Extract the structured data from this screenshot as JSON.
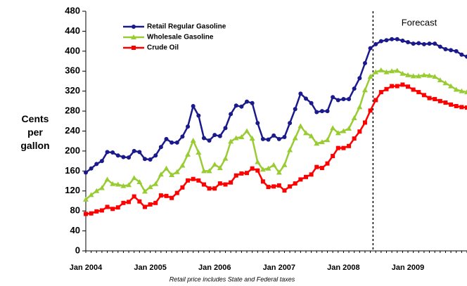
{
  "chart_data": {
    "type": "line",
    "y_label": "Cents per gallon",
    "annotation": "Forecast",
    "footnote": "Retail price includes State and Federal taxes",
    "categories": [
      "Jan 2004",
      null,
      null,
      null,
      null,
      null,
      null,
      null,
      null,
      null,
      null,
      null,
      "Jan 2005",
      null,
      null,
      null,
      null,
      null,
      null,
      null,
      null,
      null,
      null,
      null,
      "Jan 2006",
      null,
      null,
      null,
      null,
      null,
      null,
      null,
      null,
      null,
      null,
      null,
      "Jan 2007",
      null,
      null,
      null,
      null,
      null,
      null,
      null,
      null,
      null,
      null,
      null,
      "Jan 2008",
      null,
      null,
      null,
      null,
      null,
      null,
      null,
      null,
      null,
      null,
      null,
      "Jan 2009",
      null,
      null,
      null,
      null,
      null,
      null,
      null,
      null,
      null,
      null,
      null
    ],
    "ylim": [
      0,
      480
    ],
    "yticks": [
      0,
      40,
      80,
      120,
      160,
      200,
      240,
      280,
      320,
      360,
      400,
      440,
      480
    ],
    "series": [
      {
        "name": "Retail Regular Gasoline",
        "color": "#1a1a8c",
        "marker": "circle",
        "values": [
          157,
          165,
          174,
          180,
          198,
          197,
          191,
          188,
          187,
          200,
          198,
          184,
          183,
          191,
          208,
          224,
          217,
          217,
          229,
          249,
          290,
          271,
          226,
          221,
          232,
          230,
          246,
          274,
          291,
          289,
          299,
          296,
          256,
          224,
          223,
          231,
          224,
          228,
          256,
          284,
          315,
          305,
          296,
          278,
          280,
          280,
          308,
          302,
          304,
          304,
          325,
          346,
          376,
          406,
          414,
          420,
          422,
          424,
          424,
          421,
          418,
          415,
          416,
          414,
          415,
          415,
          409,
          404,
          402,
          400,
          393,
          389
        ]
      },
      {
        "name": "Wholesale Gasoline",
        "color": "#99cc33",
        "marker": "triangle",
        "values": [
          103,
          112,
          120,
          126,
          143,
          134,
          133,
          130,
          132,
          146,
          138,
          119,
          128,
          134,
          153,
          165,
          152,
          158,
          171,
          193,
          221,
          197,
          160,
          160,
          173,
          166,
          185,
          219,
          226,
          228,
          240,
          225,
          178,
          163,
          165,
          172,
          157,
          172,
          202,
          226,
          250,
          236,
          230,
          215,
          218,
          222,
          246,
          236,
          240,
          245,
          266,
          288,
          322,
          349,
          358,
          362,
          358,
          360,
          361,
          355,
          352,
          350,
          350,
          352,
          351,
          349,
          342,
          336,
          330,
          323,
          320,
          318
        ]
      },
      {
        "name": "Crude Oil",
        "color": "#ff0000",
        "marker": "square",
        "values": [
          74,
          75,
          79,
          81,
          88,
          84,
          87,
          96,
          98,
          109,
          99,
          88,
          93,
          96,
          111,
          110,
          106,
          116,
          127,
          141,
          144,
          141,
          133,
          125,
          125,
          135,
          133,
          137,
          151,
          155,
          156,
          165,
          161,
          139,
          128,
          129,
          131,
          121,
          129,
          135,
          143,
          148,
          153,
          168,
          166,
          175,
          190,
          206,
          206,
          210,
          225,
          239,
          257,
          281,
          302,
          318,
          324,
          330,
          330,
          333,
          329,
          323,
          318,
          312,
          306,
          304,
          300,
          297,
          293,
          290,
          288,
          287
        ]
      }
    ]
  }
}
